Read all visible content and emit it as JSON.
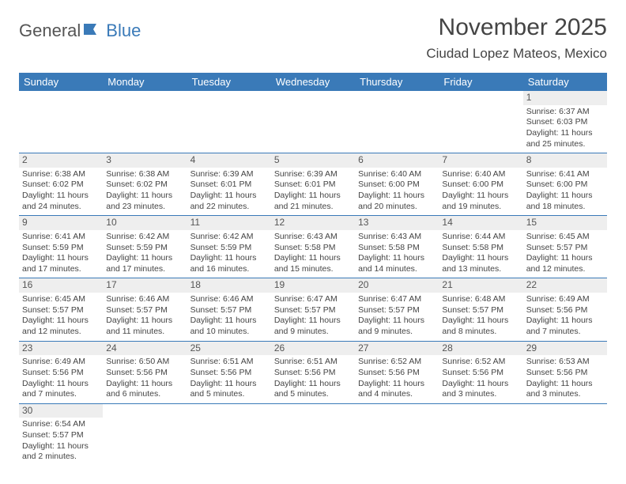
{
  "logo": {
    "text1": "General",
    "text2": "Blue"
  },
  "title": "November 2025",
  "location": "Ciudad Lopez Mateos, Mexico",
  "colors": {
    "header_bg": "#3a7ab8",
    "row_border": "#3a7ab8",
    "daynum_bg": "#eeeeee",
    "text": "#444444"
  },
  "day_names": [
    "Sunday",
    "Monday",
    "Tuesday",
    "Wednesday",
    "Thursday",
    "Friday",
    "Saturday"
  ],
  "weeks": [
    [
      {
        "blank": true
      },
      {
        "blank": true
      },
      {
        "blank": true
      },
      {
        "blank": true
      },
      {
        "blank": true
      },
      {
        "blank": true
      },
      {
        "n": "1",
        "sunrise": "Sunrise: 6:37 AM",
        "sunset": "Sunset: 6:03 PM",
        "daylight": "Daylight: 11 hours and 25 minutes."
      }
    ],
    [
      {
        "n": "2",
        "sunrise": "Sunrise: 6:38 AM",
        "sunset": "Sunset: 6:02 PM",
        "daylight": "Daylight: 11 hours and 24 minutes."
      },
      {
        "n": "3",
        "sunrise": "Sunrise: 6:38 AM",
        "sunset": "Sunset: 6:02 PM",
        "daylight": "Daylight: 11 hours and 23 minutes."
      },
      {
        "n": "4",
        "sunrise": "Sunrise: 6:39 AM",
        "sunset": "Sunset: 6:01 PM",
        "daylight": "Daylight: 11 hours and 22 minutes."
      },
      {
        "n": "5",
        "sunrise": "Sunrise: 6:39 AM",
        "sunset": "Sunset: 6:01 PM",
        "daylight": "Daylight: 11 hours and 21 minutes."
      },
      {
        "n": "6",
        "sunrise": "Sunrise: 6:40 AM",
        "sunset": "Sunset: 6:00 PM",
        "daylight": "Daylight: 11 hours and 20 minutes."
      },
      {
        "n": "7",
        "sunrise": "Sunrise: 6:40 AM",
        "sunset": "Sunset: 6:00 PM",
        "daylight": "Daylight: 11 hours and 19 minutes."
      },
      {
        "n": "8",
        "sunrise": "Sunrise: 6:41 AM",
        "sunset": "Sunset: 6:00 PM",
        "daylight": "Daylight: 11 hours and 18 minutes."
      }
    ],
    [
      {
        "n": "9",
        "sunrise": "Sunrise: 6:41 AM",
        "sunset": "Sunset: 5:59 PM",
        "daylight": "Daylight: 11 hours and 17 minutes."
      },
      {
        "n": "10",
        "sunrise": "Sunrise: 6:42 AM",
        "sunset": "Sunset: 5:59 PM",
        "daylight": "Daylight: 11 hours and 17 minutes."
      },
      {
        "n": "11",
        "sunrise": "Sunrise: 6:42 AM",
        "sunset": "Sunset: 5:59 PM",
        "daylight": "Daylight: 11 hours and 16 minutes."
      },
      {
        "n": "12",
        "sunrise": "Sunrise: 6:43 AM",
        "sunset": "Sunset: 5:58 PM",
        "daylight": "Daylight: 11 hours and 15 minutes."
      },
      {
        "n": "13",
        "sunrise": "Sunrise: 6:43 AM",
        "sunset": "Sunset: 5:58 PM",
        "daylight": "Daylight: 11 hours and 14 minutes."
      },
      {
        "n": "14",
        "sunrise": "Sunrise: 6:44 AM",
        "sunset": "Sunset: 5:58 PM",
        "daylight": "Daylight: 11 hours and 13 minutes."
      },
      {
        "n": "15",
        "sunrise": "Sunrise: 6:45 AM",
        "sunset": "Sunset: 5:57 PM",
        "daylight": "Daylight: 11 hours and 12 minutes."
      }
    ],
    [
      {
        "n": "16",
        "sunrise": "Sunrise: 6:45 AM",
        "sunset": "Sunset: 5:57 PM",
        "daylight": "Daylight: 11 hours and 12 minutes."
      },
      {
        "n": "17",
        "sunrise": "Sunrise: 6:46 AM",
        "sunset": "Sunset: 5:57 PM",
        "daylight": "Daylight: 11 hours and 11 minutes."
      },
      {
        "n": "18",
        "sunrise": "Sunrise: 6:46 AM",
        "sunset": "Sunset: 5:57 PM",
        "daylight": "Daylight: 11 hours and 10 minutes."
      },
      {
        "n": "19",
        "sunrise": "Sunrise: 6:47 AM",
        "sunset": "Sunset: 5:57 PM",
        "daylight": "Daylight: 11 hours and 9 minutes."
      },
      {
        "n": "20",
        "sunrise": "Sunrise: 6:47 AM",
        "sunset": "Sunset: 5:57 PM",
        "daylight": "Daylight: 11 hours and 9 minutes."
      },
      {
        "n": "21",
        "sunrise": "Sunrise: 6:48 AM",
        "sunset": "Sunset: 5:57 PM",
        "daylight": "Daylight: 11 hours and 8 minutes."
      },
      {
        "n": "22",
        "sunrise": "Sunrise: 6:49 AM",
        "sunset": "Sunset: 5:56 PM",
        "daylight": "Daylight: 11 hours and 7 minutes."
      }
    ],
    [
      {
        "n": "23",
        "sunrise": "Sunrise: 6:49 AM",
        "sunset": "Sunset: 5:56 PM",
        "daylight": "Daylight: 11 hours and 7 minutes."
      },
      {
        "n": "24",
        "sunrise": "Sunrise: 6:50 AM",
        "sunset": "Sunset: 5:56 PM",
        "daylight": "Daylight: 11 hours and 6 minutes."
      },
      {
        "n": "25",
        "sunrise": "Sunrise: 6:51 AM",
        "sunset": "Sunset: 5:56 PM",
        "daylight": "Daylight: 11 hours and 5 minutes."
      },
      {
        "n": "26",
        "sunrise": "Sunrise: 6:51 AM",
        "sunset": "Sunset: 5:56 PM",
        "daylight": "Daylight: 11 hours and 5 minutes."
      },
      {
        "n": "27",
        "sunrise": "Sunrise: 6:52 AM",
        "sunset": "Sunset: 5:56 PM",
        "daylight": "Daylight: 11 hours and 4 minutes."
      },
      {
        "n": "28",
        "sunrise": "Sunrise: 6:52 AM",
        "sunset": "Sunset: 5:56 PM",
        "daylight": "Daylight: 11 hours and 3 minutes."
      },
      {
        "n": "29",
        "sunrise": "Sunrise: 6:53 AM",
        "sunset": "Sunset: 5:56 PM",
        "daylight": "Daylight: 11 hours and 3 minutes."
      }
    ],
    [
      {
        "n": "30",
        "sunrise": "Sunrise: 6:54 AM",
        "sunset": "Sunset: 5:57 PM",
        "daylight": "Daylight: 11 hours and 2 minutes."
      },
      {
        "blank": true
      },
      {
        "blank": true
      },
      {
        "blank": true
      },
      {
        "blank": true
      },
      {
        "blank": true
      },
      {
        "blank": true
      }
    ]
  ]
}
